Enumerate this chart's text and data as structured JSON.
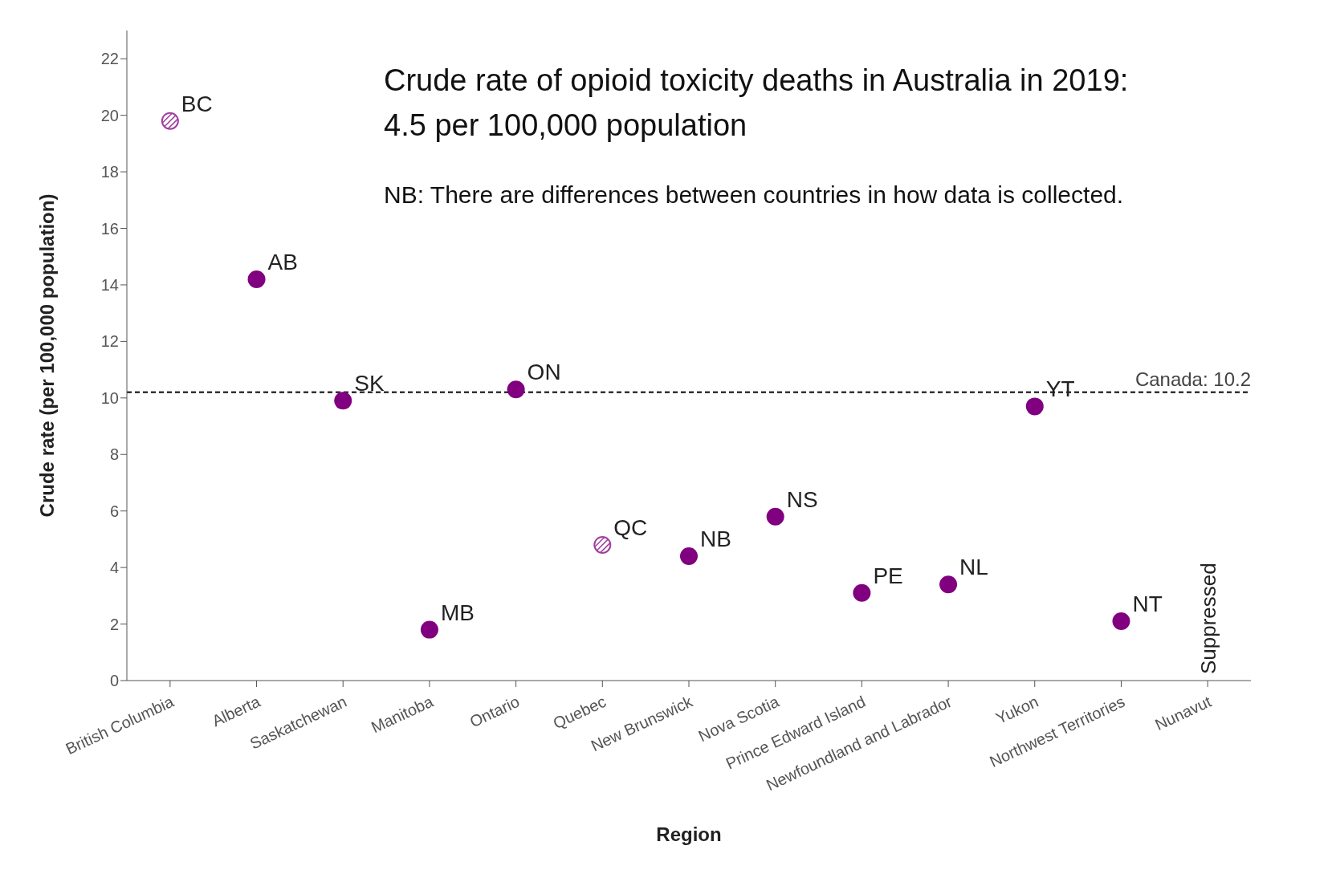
{
  "chart_data": {
    "type": "scatter",
    "title": "Crude rate of opioid toxicity deaths in Australia in 2019:\n4.5 per 100,000 population",
    "subtitle": "NB: There are differences between countries in how data is collected.",
    "xlabel": "Region",
    "ylabel": "Crude rate (per 100,000 population)",
    "categories": [
      "British Columbia",
      "Alberta",
      "Saskatchewan",
      "Manitoba",
      "Ontario",
      "Quebec",
      "New Brunswick",
      "Nova Scotia",
      "Prince Edward Island",
      "Newfoundland and Labrador",
      "Yukon",
      "Northwest Territories",
      "Nunavut"
    ],
    "series": [
      {
        "color": "#800080",
        "values": [
          null,
          14.2,
          9.9,
          1.8,
          10.3,
          null,
          4.4,
          5.8,
          3.1,
          3.4,
          9.7,
          2.1,
          null
        ]
      },
      {
        "color": "#a040a0",
        "values": [
          19.8,
          null,
          null,
          null,
          null,
          4.8,
          null,
          null,
          null,
          null,
          null,
          null,
          null
        ]
      }
    ],
    "ylim": [
      0,
      23
    ],
    "yticks": [
      0,
      2,
      4,
      6,
      8,
      10,
      12,
      14,
      16,
      18,
      20,
      22
    ],
    "marker": "circle",
    "ref_lines": [
      {
        "axis": "y",
        "value": 10.2,
        "label": "Canada: 10.2",
        "color": "#333333",
        "line_style": "dashed"
      }
    ],
    "annotations": [
      {
        "text": "BC",
        "x": "British Columbia",
        "y": 19.8
      },
      {
        "text": "AB",
        "x": "Alberta",
        "y": 14.2
      },
      {
        "text": "SK",
        "x": "Saskatchewan",
        "y": 9.9
      },
      {
        "text": "MB",
        "x": "Manitoba",
        "y": 1.8
      },
      {
        "text": "ON",
        "x": "Ontario",
        "y": 10.3
      },
      {
        "text": "QC",
        "x": "Quebec",
        "y": 4.8
      },
      {
        "text": "NB",
        "x": "New Brunswick",
        "y": 4.4
      },
      {
        "text": "NS",
        "x": "Nova Scotia",
        "y": 5.8
      },
      {
        "text": "PE",
        "x": "Prince Edward Island",
        "y": 3.1
      },
      {
        "text": "NL",
        "x": "Newfoundland and Labrador",
        "y": 3.4
      },
      {
        "text": "YT",
        "x": "Yukon",
        "y": 9.7
      },
      {
        "text": "NT",
        "x": "Northwest Territories",
        "y": 2.1
      },
      "Suppressed"
    ]
  }
}
